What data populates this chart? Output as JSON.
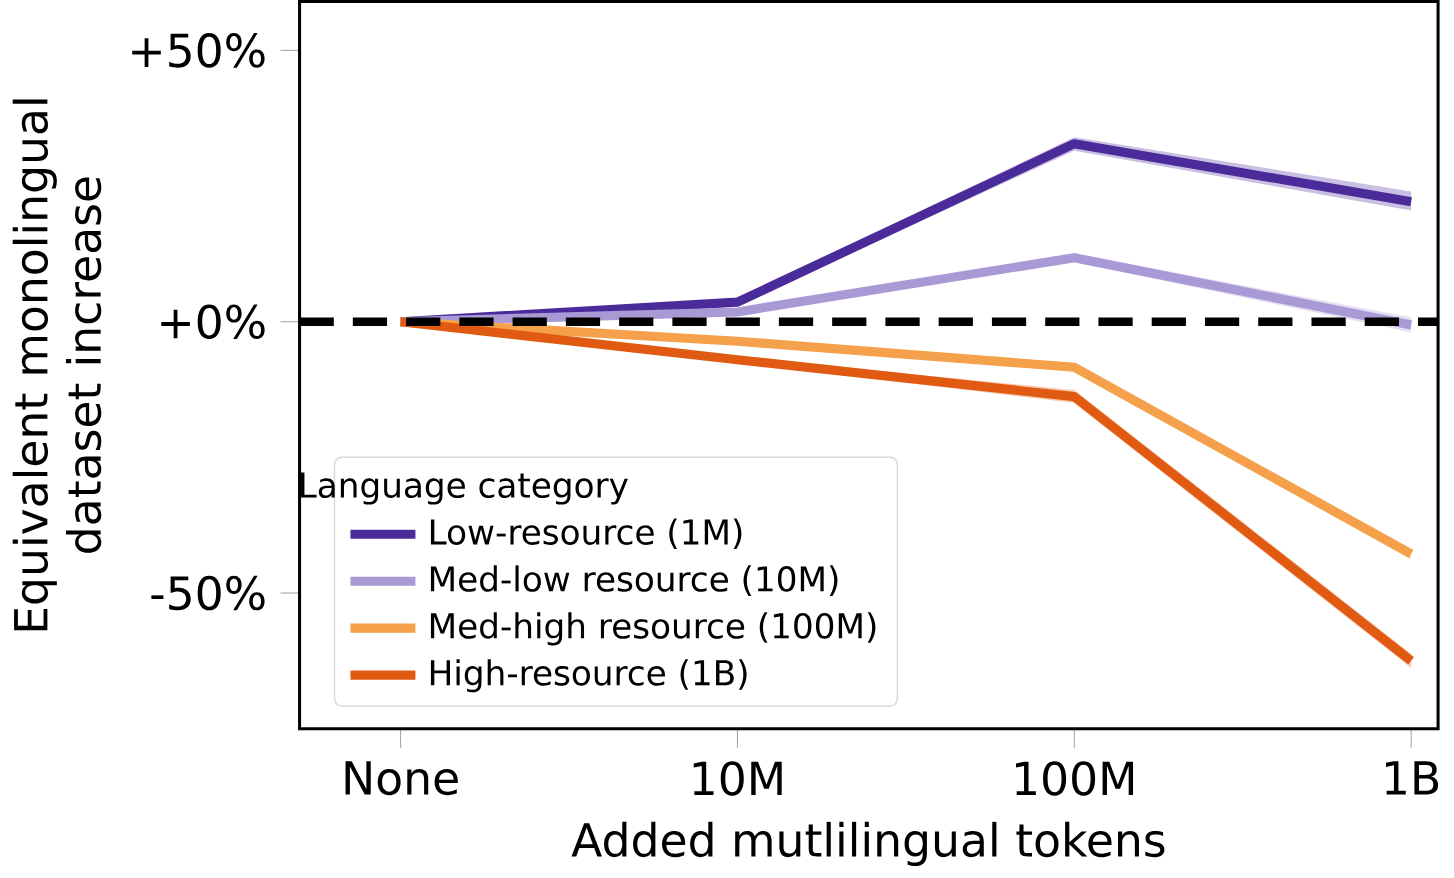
{
  "chart_data": {
    "type": "line",
    "xlabel": "Added mutlilingual tokens",
    "ylabel": "Equivalent monolingual dataset increase",
    "legend_title": "Language category",
    "categories": [
      "None",
      "10M",
      "100M",
      "1B"
    ],
    "series": [
      {
        "name": "Low-resource (1M)",
        "color": "#4b2a9a",
        "values": [
          0,
          3.6,
          32.8,
          22.1
        ],
        "lower": [
          0,
          3.0,
          31.5,
          20.5
        ],
        "upper": [
          0,
          4.2,
          34.0,
          24.0
        ]
      },
      {
        "name": "Med-low resource (10M)",
        "color": "#a99ad6",
        "values": [
          0,
          1.8,
          11.8,
          -0.6
        ],
        "lower": [
          0,
          1.3,
          11.0,
          -2.0
        ],
        "upper": [
          0,
          2.3,
          12.6,
          0.8
        ]
      },
      {
        "name": "Med-high resource (100M)",
        "color": "#f5a04a",
        "values": [
          0,
          -3.6,
          -8.4,
          -42.8
        ],
        "lower": [
          0,
          -4.1,
          -9.2,
          -43.8
        ],
        "upper": [
          0,
          -3.1,
          -7.6,
          -41.8
        ]
      },
      {
        "name": "High-resource (1B)",
        "color": "#e05a12",
        "values": [
          0,
          -7.0,
          -13.8,
          -62.5
        ],
        "lower": [
          0,
          -7.5,
          -15.0,
          -63.8
        ],
        "upper": [
          0,
          -6.5,
          -12.6,
          -61.2
        ]
      }
    ],
    "ylim": [
      -75,
      59
    ],
    "yticks": [
      {
        "value": 50,
        "label": "+50%"
      },
      {
        "value": 0,
        "label": "+0%"
      },
      {
        "value": -50,
        "label": "-50%"
      }
    ],
    "ref_lines": [
      {
        "axis": "y",
        "value": 0,
        "color": "#000000",
        "line_style": "dashed"
      }
    ],
    "grid": false,
    "legend": "bottom left",
    "marker": "none",
    "line_style": "solid"
  }
}
